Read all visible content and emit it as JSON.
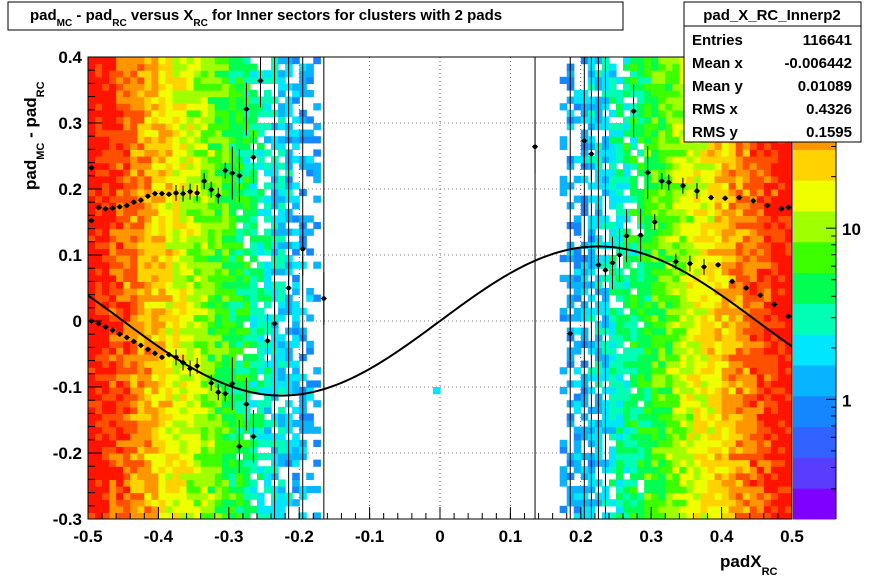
{
  "title": {
    "parts": [
      "pad",
      "MC",
      " - pad",
      "RC",
      " versus X",
      "RC",
      " for Inner sectors for clusters with 2 pads"
    ]
  },
  "stats": {
    "name": "pad_X_RC_Innerp2",
    "rows": [
      {
        "label": "Entries",
        "value": "116641"
      },
      {
        "label": "Mean x",
        "value": "-0.006442"
      },
      {
        "label": "Mean y",
        "value": "0.01089"
      },
      {
        "label": "RMS x",
        "value": "0.4326"
      },
      {
        "label": "RMS y",
        "value": "0.1595"
      }
    ]
  },
  "chart_data": {
    "type": "heatmap",
    "xlabel": {
      "main": "padX",
      "sub": "RC"
    },
    "ylabel": {
      "main": "pad",
      "sub1": "MC",
      "mid": " - pad",
      "sub2": "RC"
    },
    "xlim": [
      -0.5,
      0.5
    ],
    "ylim": [
      -0.3,
      0.4
    ],
    "xticks": [
      "-0.5",
      "-0.4",
      "-0.3",
      "-0.2",
      "-0.1",
      "0",
      "0.1",
      "0.2",
      "0.3",
      "0.4",
      "0.5"
    ],
    "yticks": [
      "-0.3",
      "-0.2",
      "-0.1",
      "0",
      "0.1",
      "0.2",
      "0.3",
      "0.4"
    ],
    "z_scale": "log",
    "zticks": [
      "1",
      "10"
    ],
    "zlim": [
      0.2,
      100
    ],
    "palette": [
      "#8000ff",
      "#5a3cff",
      "#3262ff",
      "#1487ff",
      "#08b4ff",
      "#00e6ff",
      "#00ffb4",
      "#00ff50",
      "#3cff00",
      "#a0ff00",
      "#f0ff00",
      "#ffd200",
      "#ff9600",
      "#ff5000",
      "#ff1400"
    ],
    "profile_points": [
      {
        "x": -0.495,
        "y": 0.232
      },
      {
        "x": -0.495,
        "y": 0.152
      },
      {
        "x": -0.485,
        "y": 0.172
      },
      {
        "x": -0.475,
        "y": 0.17
      },
      {
        "x": -0.465,
        "y": 0.171
      },
      {
        "x": -0.455,
        "y": 0.173
      },
      {
        "x": -0.445,
        "y": 0.175
      },
      {
        "x": -0.435,
        "y": 0.18
      },
      {
        "x": -0.425,
        "y": 0.183
      },
      {
        "x": -0.415,
        "y": 0.189
      },
      {
        "x": -0.405,
        "y": 0.193
      },
      {
        "x": -0.395,
        "y": 0.193
      },
      {
        "x": -0.385,
        "y": 0.192
      },
      {
        "x": -0.375,
        "y": 0.194
      },
      {
        "x": -0.365,
        "y": 0.193
      },
      {
        "x": -0.355,
        "y": 0.196
      },
      {
        "x": -0.345,
        "y": 0.194
      },
      {
        "x": -0.335,
        "y": 0.212
      },
      {
        "x": -0.325,
        "y": 0.199
      },
      {
        "x": -0.315,
        "y": 0.19
      },
      {
        "x": -0.305,
        "y": 0.228
      },
      {
        "x": -0.295,
        "y": 0.224
      },
      {
        "x": -0.285,
        "y": 0.22
      },
      {
        "x": -0.275,
        "y": 0.321
      },
      {
        "x": -0.265,
        "y": 0.248
      },
      {
        "x": -0.255,
        "y": 0.364
      },
      {
        "x": -0.235,
        "y": -0.004
      },
      {
        "x": -0.215,
        "y": 0.05
      },
      {
        "x": -0.195,
        "y": 0.109
      },
      {
        "x": -0.165,
        "y": 0.034
      },
      {
        "x": -0.495,
        "y": 0.0
      },
      {
        "x": -0.485,
        "y": -0.004
      },
      {
        "x": -0.475,
        "y": -0.009
      },
      {
        "x": -0.465,
        "y": -0.014
      },
      {
        "x": -0.455,
        "y": -0.02
      },
      {
        "x": -0.445,
        "y": -0.025
      },
      {
        "x": -0.435,
        "y": -0.031
      },
      {
        "x": -0.425,
        "y": -0.037
      },
      {
        "x": -0.415,
        "y": -0.043
      },
      {
        "x": -0.405,
        "y": -0.049
      },
      {
        "x": -0.395,
        "y": -0.055
      },
      {
        "x": -0.385,
        "y": -0.051
      },
      {
        "x": -0.375,
        "y": -0.055
      },
      {
        "x": -0.365,
        "y": -0.063
      },
      {
        "x": -0.355,
        "y": -0.072
      },
      {
        "x": -0.345,
        "y": -0.068
      },
      {
        "x": -0.325,
        "y": -0.094
      },
      {
        "x": -0.315,
        "y": -0.108
      },
      {
        "x": -0.305,
        "y": -0.11
      },
      {
        "x": -0.295,
        "y": -0.095
      },
      {
        "x": -0.285,
        "y": -0.19
      },
      {
        "x": -0.275,
        "y": -0.126
      },
      {
        "x": -0.265,
        "y": -0.175
      },
      {
        "x": -0.245,
        "y": -0.03
      },
      {
        "x": 0.135,
        "y": 0.264
      },
      {
        "x": 0.185,
        "y": -0.019
      },
      {
        "x": 0.205,
        "y": 0.273
      },
      {
        "x": 0.215,
        "y": 0.253
      },
      {
        "x": 0.225,
        "y": 0.085
      },
      {
        "x": 0.235,
        "y": 0.077
      },
      {
        "x": 0.245,
        "y": 0.088
      },
      {
        "x": 0.255,
        "y": 0.1
      },
      {
        "x": 0.265,
        "y": 0.129
      },
      {
        "x": 0.275,
        "y": 0.318
      },
      {
        "x": 0.285,
        "y": 0.13
      },
      {
        "x": 0.295,
        "y": 0.225
      },
      {
        "x": 0.305,
        "y": 0.15
      },
      {
        "x": 0.315,
        "y": 0.212
      },
      {
        "x": 0.325,
        "y": 0.21
      },
      {
        "x": 0.335,
        "y": 0.09
      },
      {
        "x": 0.345,
        "y": 0.205
      },
      {
        "x": 0.355,
        "y": 0.087
      },
      {
        "x": 0.365,
        "y": 0.197
      },
      {
        "x": 0.375,
        "y": 0.082
      },
      {
        "x": 0.385,
        "y": 0.187
      },
      {
        "x": 0.395,
        "y": 0.085
      },
      {
        "x": 0.405,
        "y": 0.186
      },
      {
        "x": 0.415,
        "y": 0.06
      },
      {
        "x": 0.425,
        "y": 0.187
      },
      {
        "x": 0.435,
        "y": 0.05
      },
      {
        "x": 0.445,
        "y": 0.182
      },
      {
        "x": 0.455,
        "y": 0.039
      },
      {
        "x": 0.465,
        "y": 0.175
      },
      {
        "x": 0.475,
        "y": 0.025
      },
      {
        "x": 0.485,
        "y": 0.17
      },
      {
        "x": 0.495,
        "y": 0.007
      },
      {
        "x": 0.495,
        "y": 0.172
      }
    ],
    "fit_curve": {
      "amplitude": 0.113,
      "period": 0.9,
      "x_range": [
        -0.5,
        0.5
      ]
    }
  }
}
